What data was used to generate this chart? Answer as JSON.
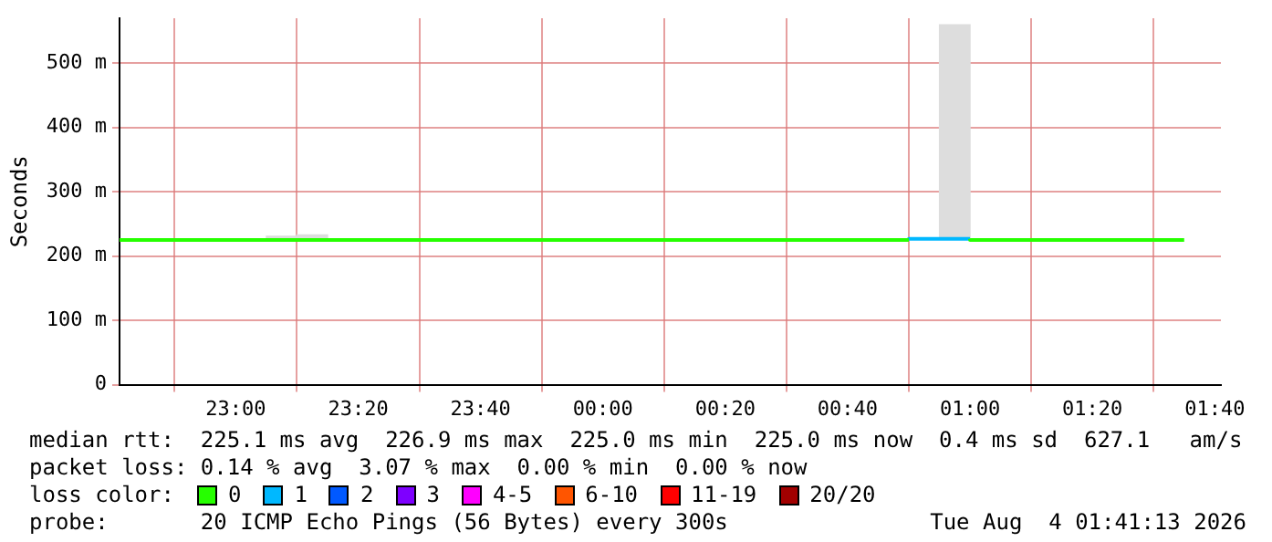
{
  "chart_data": {
    "type": "step",
    "ylabel": "Seconds",
    "x": [
      "2026-08-03T22:41",
      "2026-08-04T00:50",
      "2026-08-04T00:55",
      "2026-08-04T01:00",
      "2026-08-04T01:05",
      "2026-08-04T01:35"
    ],
    "xlim": [
      "2026-08-03T22:41",
      "2026-08-04T01:41"
    ],
    "xticks": [
      {
        "value": "2026-08-03T23:00",
        "label": "23:00"
      },
      {
        "value": "2026-08-03T23:20",
        "label": "23:20"
      },
      {
        "value": "2026-08-03T23:40",
        "label": "23:40"
      },
      {
        "value": "2026-08-04T00:00",
        "label": "00:00"
      },
      {
        "value": "2026-08-04T00:20",
        "label": "00:20"
      },
      {
        "value": "2026-08-04T00:40",
        "label": "00:40"
      },
      {
        "value": "2026-08-04T01:00",
        "label": "01:00"
      },
      {
        "value": "2026-08-04T01:20",
        "label": "01:20"
      },
      {
        "value": "2026-08-04T01:40",
        "label": "01:40"
      }
    ],
    "ylim": [
      0,
      570
    ],
    "yticks": [
      {
        "value": 0,
        "label": "0"
      },
      {
        "value": 100,
        "label": "100 m"
      },
      {
        "value": 200,
        "label": "200 m"
      },
      {
        "value": 300,
        "label": "300 m"
      },
      {
        "value": 400,
        "label": "400 m"
      },
      {
        "value": 500,
        "label": "500 m"
      }
    ],
    "grid": true,
    "legend": "bottom",
    "legend_title": "loss color:",
    "series": [
      {
        "type": "bar",
        "color": "#dddddd",
        "x": [
          "2026-08-03T23:07:30",
          "2026-08-03T23:12:30",
          "2026-08-04T00:57:30"
        ],
        "base": [
          225,
          225,
          227
        ],
        "values": [
          6,
          8,
          333
        ]
      },
      {
        "name": "0",
        "color": "#26ff00",
        "values": [
          225,
          225,
          null,
          227,
          225,
          225
        ]
      },
      {
        "name": "1",
        "color": "#00b8ff",
        "values": [
          null,
          225,
          227,
          227,
          null,
          null
        ]
      },
      {
        "name": "2",
        "color": "#0059ff",
        "values": [
          null,
          null,
          null,
          null,
          null,
          null
        ]
      },
      {
        "name": "3",
        "color": "#7e00ff",
        "values": [
          null,
          null,
          null,
          null,
          null,
          null
        ]
      },
      {
        "name": "4-5",
        "color": "#ff00ff",
        "values": [
          null,
          null,
          null,
          null,
          null,
          null
        ]
      },
      {
        "name": "6-10",
        "color": "#ff5500",
        "values": [
          null,
          null,
          null,
          null,
          null,
          null
        ]
      },
      {
        "name": "11-19",
        "color": "#ff0000",
        "values": [
          null,
          null,
          null,
          null,
          null,
          null
        ]
      },
      {
        "name": "20/20",
        "color": "#a10000",
        "values": [
          null,
          null,
          null,
          null,
          null,
          null
        ]
      }
    ],
    "annotations": [
      "median rtt:  225.1 ms avg  226.9 ms max  225.0 ms min  225.0 ms now  0.4 ms sd  627.1   am/s",
      "packet loss: 0.14 % avg  3.07 % max  0.00 % min  0.00 % now",
      "probe:       20 ICMP Echo Pings (56 Bytes) every 300s",
      "Tue Aug  4 01:41:13 2026"
    ]
  }
}
